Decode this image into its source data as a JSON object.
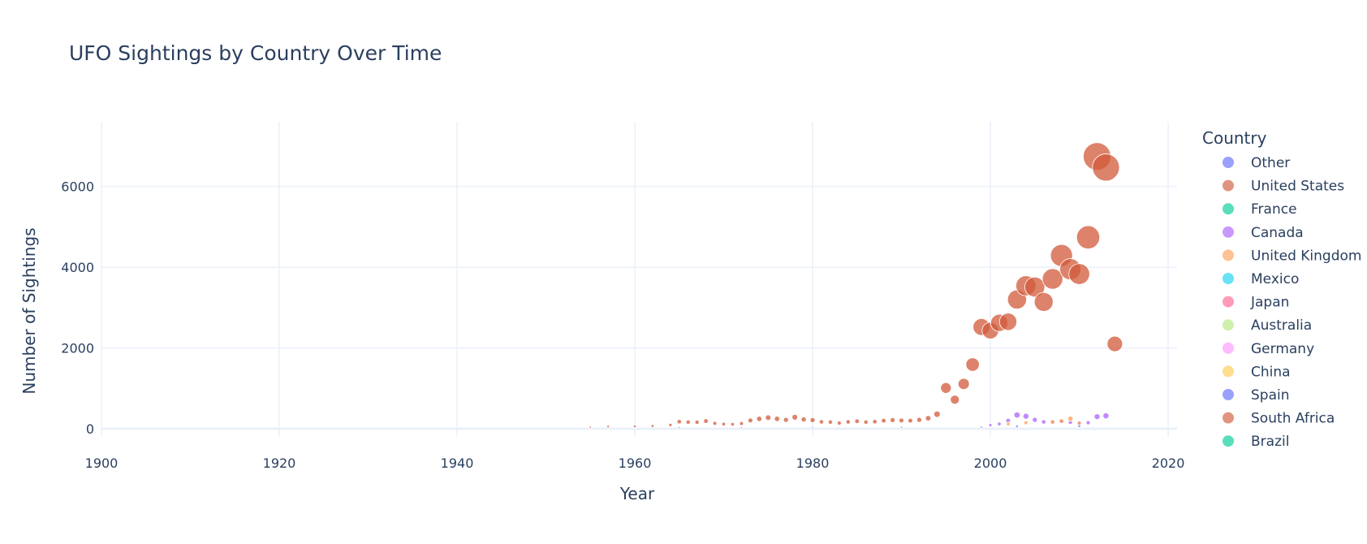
{
  "chart_data": {
    "type": "scatter",
    "title": "UFO Sightings by Country Over Time",
    "xlabel": "Year",
    "ylabel": "Number of Sightings",
    "xlim": [
      1900,
      2021
    ],
    "ylim": [
      -200,
      7600
    ],
    "xticks": [
      1900,
      1920,
      1940,
      1960,
      1980,
      2000,
      2020
    ],
    "yticks": [
      0,
      2000,
      4000,
      6000
    ],
    "grid": true,
    "legend_title": "Country",
    "legend_position": "right",
    "series": [
      {
        "name": "Other",
        "color": "#636efa",
        "points": [
          [
            1960,
            45
          ],
          [
            1965,
            30
          ],
          [
            1972,
            25
          ],
          [
            1980,
            30
          ],
          [
            1990,
            35
          ],
          [
            1999,
            40
          ],
          [
            2003,
            60
          ],
          [
            2010,
            70
          ]
        ]
      },
      {
        "name": "United States",
        "color": "#d15a3a",
        "points": [
          [
            1955,
            40
          ],
          [
            1957,
            55
          ],
          [
            1960,
            60
          ],
          [
            1962,
            70
          ],
          [
            1964,
            95
          ],
          [
            1965,
            175
          ],
          [
            1966,
            165
          ],
          [
            1967,
            160
          ],
          [
            1968,
            190
          ],
          [
            1969,
            135
          ],
          [
            1970,
            115
          ],
          [
            1971,
            110
          ],
          [
            1972,
            130
          ],
          [
            1973,
            205
          ],
          [
            1974,
            245
          ],
          [
            1975,
            275
          ],
          [
            1976,
            245
          ],
          [
            1977,
            220
          ],
          [
            1978,
            285
          ],
          [
            1979,
            230
          ],
          [
            1980,
            215
          ],
          [
            1981,
            170
          ],
          [
            1982,
            165
          ],
          [
            1983,
            140
          ],
          [
            1984,
            170
          ],
          [
            1985,
            185
          ],
          [
            1986,
            165
          ],
          [
            1987,
            175
          ],
          [
            1988,
            200
          ],
          [
            1989,
            215
          ],
          [
            1990,
            205
          ],
          [
            1991,
            200
          ],
          [
            1992,
            220
          ],
          [
            1993,
            260
          ],
          [
            1994,
            360
          ],
          [
            1995,
            1010
          ],
          [
            1996,
            720
          ],
          [
            1997,
            1110
          ],
          [
            1998,
            1590
          ],
          [
            1999,
            2520
          ],
          [
            2000,
            2430
          ],
          [
            2001,
            2620
          ],
          [
            2002,
            2650
          ],
          [
            2003,
            3200
          ],
          [
            2004,
            3540
          ],
          [
            2005,
            3510
          ],
          [
            2006,
            3140
          ],
          [
            2007,
            3710
          ],
          [
            2008,
            4290
          ],
          [
            2009,
            3950
          ],
          [
            2010,
            3830
          ],
          [
            2011,
            4740
          ],
          [
            2012,
            6740
          ],
          [
            2013,
            6470
          ],
          [
            2014,
            2100
          ]
        ]
      },
      {
        "name": "France",
        "color": "#00cc96",
        "points": []
      },
      {
        "name": "Canada",
        "color": "#ab63fa",
        "points": [
          [
            2000,
            90
          ],
          [
            2001,
            120
          ],
          [
            2002,
            200
          ],
          [
            2003,
            340
          ],
          [
            2004,
            310
          ],
          [
            2005,
            220
          ],
          [
            2006,
            170
          ],
          [
            2007,
            160
          ],
          [
            2008,
            180
          ],
          [
            2009,
            160
          ],
          [
            2010,
            140
          ],
          [
            2011,
            150
          ],
          [
            2012,
            300
          ],
          [
            2013,
            320
          ]
        ]
      },
      {
        "name": "United Kingdom",
        "color": "#ffa15a",
        "points": [
          [
            2002,
            120
          ],
          [
            2004,
            150
          ],
          [
            2007,
            170
          ],
          [
            2008,
            190
          ],
          [
            2009,
            250
          ],
          [
            2010,
            140
          ]
        ]
      },
      {
        "name": "Mexico",
        "color": "#19d3f3",
        "points": []
      },
      {
        "name": "Japan",
        "color": "#ff6692",
        "points": []
      },
      {
        "name": "Australia",
        "color": "#b6e880",
        "points": []
      },
      {
        "name": "Germany",
        "color": "#ff97ff",
        "points": []
      },
      {
        "name": "China",
        "color": "#fecb52",
        "points": []
      },
      {
        "name": "Spain",
        "color": "#636efa",
        "points": []
      },
      {
        "name": "South Africa",
        "color": "#d15a3a",
        "points": []
      },
      {
        "name": "Brazil",
        "color": "#00cc96",
        "points": []
      }
    ]
  }
}
